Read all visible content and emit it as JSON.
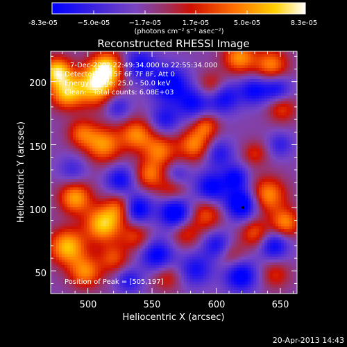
{
  "chart_data": {
    "type": "heatmap",
    "title": "Reconstructed RHESSI Image",
    "xlabel": "Heliocentric X (arcsec)",
    "ylabel": "Heliocentric Y (arcsec)",
    "xlim": [
      471,
      663
    ],
    "ylim": [
      32,
      224
    ],
    "x_ticks": [
      500,
      550,
      600,
      650
    ],
    "y_ticks": [
      50,
      100,
      150,
      200
    ],
    "colorbar": {
      "min": -8.3e-05,
      "max": 8.3e-05,
      "tick_labels": [
        "-8.3e-05",
        "−5.0e-05",
        "−1.7e-05",
        "1.7e-05",
        "5.0e-05",
        "8.3e-05"
      ],
      "units_label": "(photons cm⁻² s⁻¹ asec⁻²)",
      "colors": [
        "#0000ff",
        "#7a45c0",
        "#9c3060",
        "#d01000",
        "#ff7000",
        "#ffd000",
        "#ffffff"
      ]
    },
    "annotations": [
      "7-Dec-2002 22:49:34.000 to 22:55:34.000",
      "Detectors: 4F 5F 6F 7F 8F, Att 0",
      "Energy Range: 25.0 - 50.0 keV",
      "Clean:   Total counts: 6.08E+03",
      "Position of Peak = [505,197]"
    ],
    "timestamp": "20-Apr-2013 14:43",
    "sources": [
      {
        "x": 476,
        "y": 208,
        "v": 1.0,
        "r": 8
      },
      {
        "x": 483,
        "y": 191,
        "v": 0.85,
        "r": 9
      },
      {
        "x": 506,
        "y": 197,
        "v": 1.0,
        "r": 11
      },
      {
        "x": 515,
        "y": 211,
        "v": 0.9,
        "r": 9
      },
      {
        "x": 512,
        "y": 150,
        "v": 0.75,
        "r": 10
      },
      {
        "x": 495,
        "y": 159,
        "v": 0.55,
        "r": 8
      },
      {
        "x": 538,
        "y": 158,
        "v": 0.7,
        "r": 9
      },
      {
        "x": 556,
        "y": 145,
        "v": 0.65,
        "r": 9
      },
      {
        "x": 548,
        "y": 126,
        "v": 0.6,
        "r": 8
      },
      {
        "x": 566,
        "y": 116,
        "v": 0.5,
        "r": 8
      },
      {
        "x": 583,
        "y": 150,
        "v": 0.7,
        "r": 9
      },
      {
        "x": 592,
        "y": 165,
        "v": 0.55,
        "r": 7
      },
      {
        "x": 597,
        "y": 196,
        "v": 0.55,
        "r": 8
      },
      {
        "x": 618,
        "y": 219,
        "v": 0.75,
        "r": 9
      },
      {
        "x": 643,
        "y": 213,
        "v": 0.7,
        "r": 9
      },
      {
        "x": 651,
        "y": 179,
        "v": 0.5,
        "r": 8
      },
      {
        "x": 640,
        "y": 110,
        "v": 0.75,
        "r": 10
      },
      {
        "x": 654,
        "y": 88,
        "v": 0.7,
        "r": 8
      },
      {
        "x": 630,
        "y": 80,
        "v": 0.55,
        "r": 8
      },
      {
        "x": 592,
        "y": 95,
        "v": 0.55,
        "r": 9
      },
      {
        "x": 611,
        "y": 63,
        "v": 0.4,
        "r": 8
      },
      {
        "x": 490,
        "y": 108,
        "v": 0.8,
        "r": 9
      },
      {
        "x": 512,
        "y": 87,
        "v": 0.95,
        "r": 10
      },
      {
        "x": 525,
        "y": 100,
        "v": 0.55,
        "r": 8
      },
      {
        "x": 484,
        "y": 69,
        "v": 0.9,
        "r": 10
      },
      {
        "x": 498,
        "y": 49,
        "v": 0.7,
        "r": 9
      },
      {
        "x": 520,
        "y": 60,
        "v": 0.5,
        "r": 8
      },
      {
        "x": 537,
        "y": 77,
        "v": 0.45,
        "r": 8
      },
      {
        "x": 576,
        "y": 80,
        "v": 0.45,
        "r": 8
      },
      {
        "x": 561,
        "y": 45,
        "v": 0.4,
        "r": 8
      },
      {
        "x": 646,
        "y": 47,
        "v": 0.4,
        "r": 8
      },
      {
        "x": 630,
        "y": 143,
        "v": 0.4,
        "r": 7
      },
      {
        "x": 540,
        "y": 213,
        "v": -0.6,
        "r": 9
      },
      {
        "x": 563,
        "y": 198,
        "v": -0.8,
        "r": 10
      },
      {
        "x": 582,
        "y": 183,
        "v": -0.6,
        "r": 9
      },
      {
        "x": 605,
        "y": 188,
        "v": -0.7,
        "r": 9
      },
      {
        "x": 629,
        "y": 193,
        "v": -0.6,
        "r": 8
      },
      {
        "x": 647,
        "y": 194,
        "v": -0.6,
        "r": 8
      },
      {
        "x": 602,
        "y": 143,
        "v": -0.5,
        "r": 8
      },
      {
        "x": 560,
        "y": 170,
        "v": -0.5,
        "r": 8
      },
      {
        "x": 523,
        "y": 180,
        "v": -0.45,
        "r": 7
      },
      {
        "x": 538,
        "y": 99,
        "v": -0.8,
        "r": 8
      },
      {
        "x": 525,
        "y": 122,
        "v": -0.6,
        "r": 8
      },
      {
        "x": 568,
        "y": 96,
        "v": -0.85,
        "r": 9
      },
      {
        "x": 596,
        "y": 116,
        "v": -0.7,
        "r": 9
      },
      {
        "x": 620,
        "y": 103,
        "v": -0.9,
        "r": 9
      },
      {
        "x": 615,
        "y": 124,
        "v": -0.6,
        "r": 7
      },
      {
        "x": 554,
        "y": 62,
        "v": -0.7,
        "r": 9
      },
      {
        "x": 584,
        "y": 51,
        "v": -0.55,
        "r": 9
      },
      {
        "x": 619,
        "y": 46,
        "v": -0.75,
        "r": 9
      },
      {
        "x": 645,
        "y": 70,
        "v": -0.65,
        "r": 8
      },
      {
        "x": 601,
        "y": 70,
        "v": -0.6,
        "r": 8
      },
      {
        "x": 650,
        "y": 150,
        "v": -0.4,
        "r": 7
      },
      {
        "x": 488,
        "y": 130,
        "v": -0.35,
        "r": 8
      },
      {
        "x": 532,
        "y": 42,
        "v": -0.5,
        "r": 7
      },
      {
        "x": 569,
        "y": 125,
        "v": -0.45,
        "r": 7
      }
    ]
  }
}
